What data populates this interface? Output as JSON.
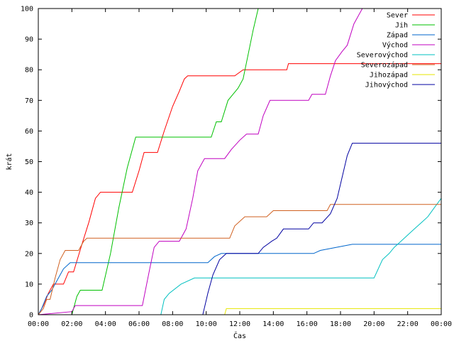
{
  "chart_data": {
    "type": "line",
    "title": "",
    "xlabel": "Čas",
    "ylabel": "krát",
    "xlim": [
      0,
      24
    ],
    "ylim": [
      0,
      100
    ],
    "x_ticks": [
      {
        "value": 0,
        "label": "00:00"
      },
      {
        "value": 2,
        "label": "02:00"
      },
      {
        "value": 4,
        "label": "04:00"
      },
      {
        "value": 6,
        "label": "06:00"
      },
      {
        "value": 8,
        "label": "08:00"
      },
      {
        "value": 10,
        "label": "10:00"
      },
      {
        "value": 12,
        "label": "12:00"
      },
      {
        "value": 14,
        "label": "14:00"
      },
      {
        "value": 16,
        "label": "16:00"
      },
      {
        "value": 18,
        "label": "18:00"
      },
      {
        "value": 20,
        "label": "20:00"
      },
      {
        "value": 22,
        "label": "22:00"
      },
      {
        "value": 24,
        "label": "00:00"
      }
    ],
    "y_ticks": [
      0,
      10,
      20,
      30,
      40,
      50,
      60,
      70,
      80,
      90,
      100
    ],
    "grid": false,
    "legend_position": "top-right",
    "series": [
      {
        "name": "Sever",
        "color": "#ff0000",
        "points": [
          [
            0,
            0
          ],
          [
            0.3,
            3
          ],
          [
            0.6,
            7
          ],
          [
            0.9,
            10
          ],
          [
            1.5,
            10
          ],
          [
            1.8,
            14
          ],
          [
            2.1,
            14
          ],
          [
            2.6,
            23
          ],
          [
            3.0,
            30
          ],
          [
            3.4,
            38
          ],
          [
            3.7,
            40
          ],
          [
            5.6,
            40
          ],
          [
            6.0,
            47
          ],
          [
            6.3,
            53
          ],
          [
            7.1,
            53
          ],
          [
            7.5,
            60
          ],
          [
            8.0,
            68
          ],
          [
            8.4,
            73
          ],
          [
            8.7,
            77
          ],
          [
            8.9,
            78
          ],
          [
            11.7,
            78
          ],
          [
            12.2,
            80
          ],
          [
            14.8,
            80
          ],
          [
            14.9,
            82
          ],
          [
            24,
            82
          ]
        ]
      },
      {
        "name": "Jih",
        "color": "#00c000",
        "points": [
          [
            0,
            0
          ],
          [
            2.0,
            0
          ],
          [
            2.3,
            6
          ],
          [
            2.5,
            8
          ],
          [
            3.8,
            8
          ],
          [
            4.3,
            20
          ],
          [
            4.8,
            35
          ],
          [
            5.3,
            48
          ],
          [
            5.8,
            58
          ],
          [
            10.3,
            58
          ],
          [
            10.6,
            63
          ],
          [
            10.9,
            63
          ],
          [
            11.3,
            70
          ],
          [
            11.6,
            72
          ],
          [
            11.9,
            74
          ],
          [
            12.2,
            77
          ],
          [
            12.5,
            85
          ],
          [
            12.8,
            93
          ],
          [
            13.1,
            100
          ]
        ]
      },
      {
        "name": "Západ",
        "color": "#0066cc",
        "points": [
          [
            0,
            0
          ],
          [
            0.2,
            2
          ],
          [
            0.5,
            6
          ],
          [
            0.8,
            8
          ],
          [
            1.2,
            12
          ],
          [
            1.5,
            15
          ],
          [
            1.9,
            17
          ],
          [
            10.1,
            17
          ],
          [
            10.5,
            19
          ],
          [
            10.9,
            20
          ],
          [
            16.4,
            20
          ],
          [
            16.8,
            21
          ],
          [
            18.7,
            23
          ],
          [
            24,
            23
          ]
        ]
      },
      {
        "name": "Východ",
        "color": "#c000c0",
        "points": [
          [
            0,
            0
          ],
          [
            2.0,
            1
          ],
          [
            2.2,
            3
          ],
          [
            6.2,
            3
          ],
          [
            6.6,
            14
          ],
          [
            6.9,
            22
          ],
          [
            7.2,
            24
          ],
          [
            8.4,
            24
          ],
          [
            8.8,
            28
          ],
          [
            9.2,
            38
          ],
          [
            9.5,
            47
          ],
          [
            9.9,
            51
          ],
          [
            11.1,
            51
          ],
          [
            11.5,
            54
          ],
          [
            12.0,
            57
          ],
          [
            12.4,
            59
          ],
          [
            13.1,
            59
          ],
          [
            13.4,
            65
          ],
          [
            13.8,
            70
          ],
          [
            16.1,
            70
          ],
          [
            16.3,
            72
          ],
          [
            17.1,
            72
          ],
          [
            17.4,
            78
          ],
          [
            17.7,
            83
          ],
          [
            18.1,
            86
          ],
          [
            18.4,
            88
          ],
          [
            18.8,
            95
          ],
          [
            19.3,
            100
          ]
        ]
      },
      {
        "name": "Severovýchod",
        "color": "#00c0c0",
        "points": [
          [
            0,
            0
          ],
          [
            7.3,
            0
          ],
          [
            7.5,
            5
          ],
          [
            7.8,
            7
          ],
          [
            8.5,
            10
          ],
          [
            9.3,
            12
          ],
          [
            20.0,
            12
          ],
          [
            20.5,
            18
          ],
          [
            20.9,
            20
          ],
          [
            21.2,
            22
          ],
          [
            21.6,
            24
          ],
          [
            22.0,
            26
          ],
          [
            22.4,
            28
          ],
          [
            22.8,
            30
          ],
          [
            23.2,
            32
          ],
          [
            23.6,
            35
          ],
          [
            24,
            38
          ]
        ]
      },
      {
        "name": "Severozápad",
        "color": "#d06020",
        "points": [
          [
            0,
            0
          ],
          [
            0.3,
            2
          ],
          [
            0.5,
            5
          ],
          [
            0.7,
            5
          ],
          [
            1.0,
            12
          ],
          [
            1.3,
            18
          ],
          [
            1.6,
            21
          ],
          [
            2.4,
            21
          ],
          [
            2.7,
            24
          ],
          [
            2.9,
            25
          ],
          [
            11.4,
            25
          ],
          [
            11.7,
            29
          ],
          [
            12.3,
            32
          ],
          [
            13.6,
            32
          ],
          [
            14.0,
            34
          ],
          [
            17.2,
            34
          ],
          [
            17.4,
            36
          ],
          [
            24,
            36
          ]
        ]
      },
      {
        "name": "Jihozápad",
        "color": "#e6e600",
        "points": [
          [
            11.1,
            0
          ],
          [
            11.2,
            2
          ],
          [
            24,
            2
          ]
        ]
      },
      {
        "name": "Jihovýchod",
        "color": "#0000a0",
        "points": [
          [
            0,
            0
          ],
          [
            9.8,
            0
          ],
          [
            10.1,
            7
          ],
          [
            10.4,
            13
          ],
          [
            10.8,
            18
          ],
          [
            11.2,
            20
          ],
          [
            13.1,
            20
          ],
          [
            13.4,
            22
          ],
          [
            13.9,
            24
          ],
          [
            14.2,
            25
          ],
          [
            14.6,
            28
          ],
          [
            16.1,
            28
          ],
          [
            16.4,
            30
          ],
          [
            16.9,
            30
          ],
          [
            17.4,
            33
          ],
          [
            17.8,
            38
          ],
          [
            18.1,
            45
          ],
          [
            18.4,
            52
          ],
          [
            18.7,
            56
          ],
          [
            24,
            56
          ]
        ]
      }
    ]
  }
}
